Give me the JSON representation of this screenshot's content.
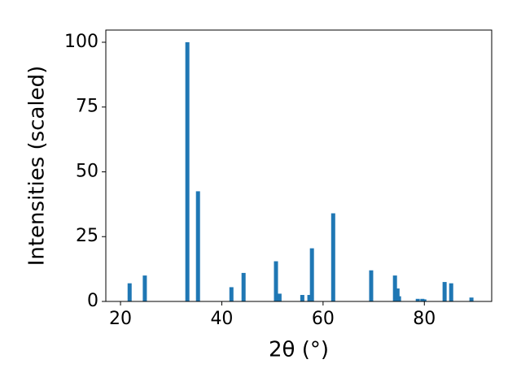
{
  "chart_data": {
    "type": "bar",
    "xlabel": "2θ (°)",
    "ylabel": "Intensities (scaled)",
    "x": [
      21.8,
      24.8,
      33.2,
      35.3,
      41.9,
      44.3,
      50.7,
      51.4,
      55.9,
      57.3,
      57.8,
      62.0,
      69.5,
      74.2,
      74.7,
      75.0,
      78.7,
      79.6,
      80.0,
      84.0,
      85.3,
      89.3
    ],
    "values": [
      7,
      10,
      100,
      42.5,
      5.5,
      11,
      15.5,
      3,
      2.5,
      2.5,
      20.5,
      34,
      12,
      10,
      5,
      2,
      1,
      1,
      0.8,
      7.5,
      7,
      1.5
    ],
    "color": "#1f77b4",
    "xlim": [
      17.1,
      93.3
    ],
    "xticks": [
      20,
      40,
      60,
      80
    ],
    "ylim": [
      0,
      104.7
    ],
    "yticks": [
      0,
      25,
      50,
      75,
      100
    ]
  }
}
